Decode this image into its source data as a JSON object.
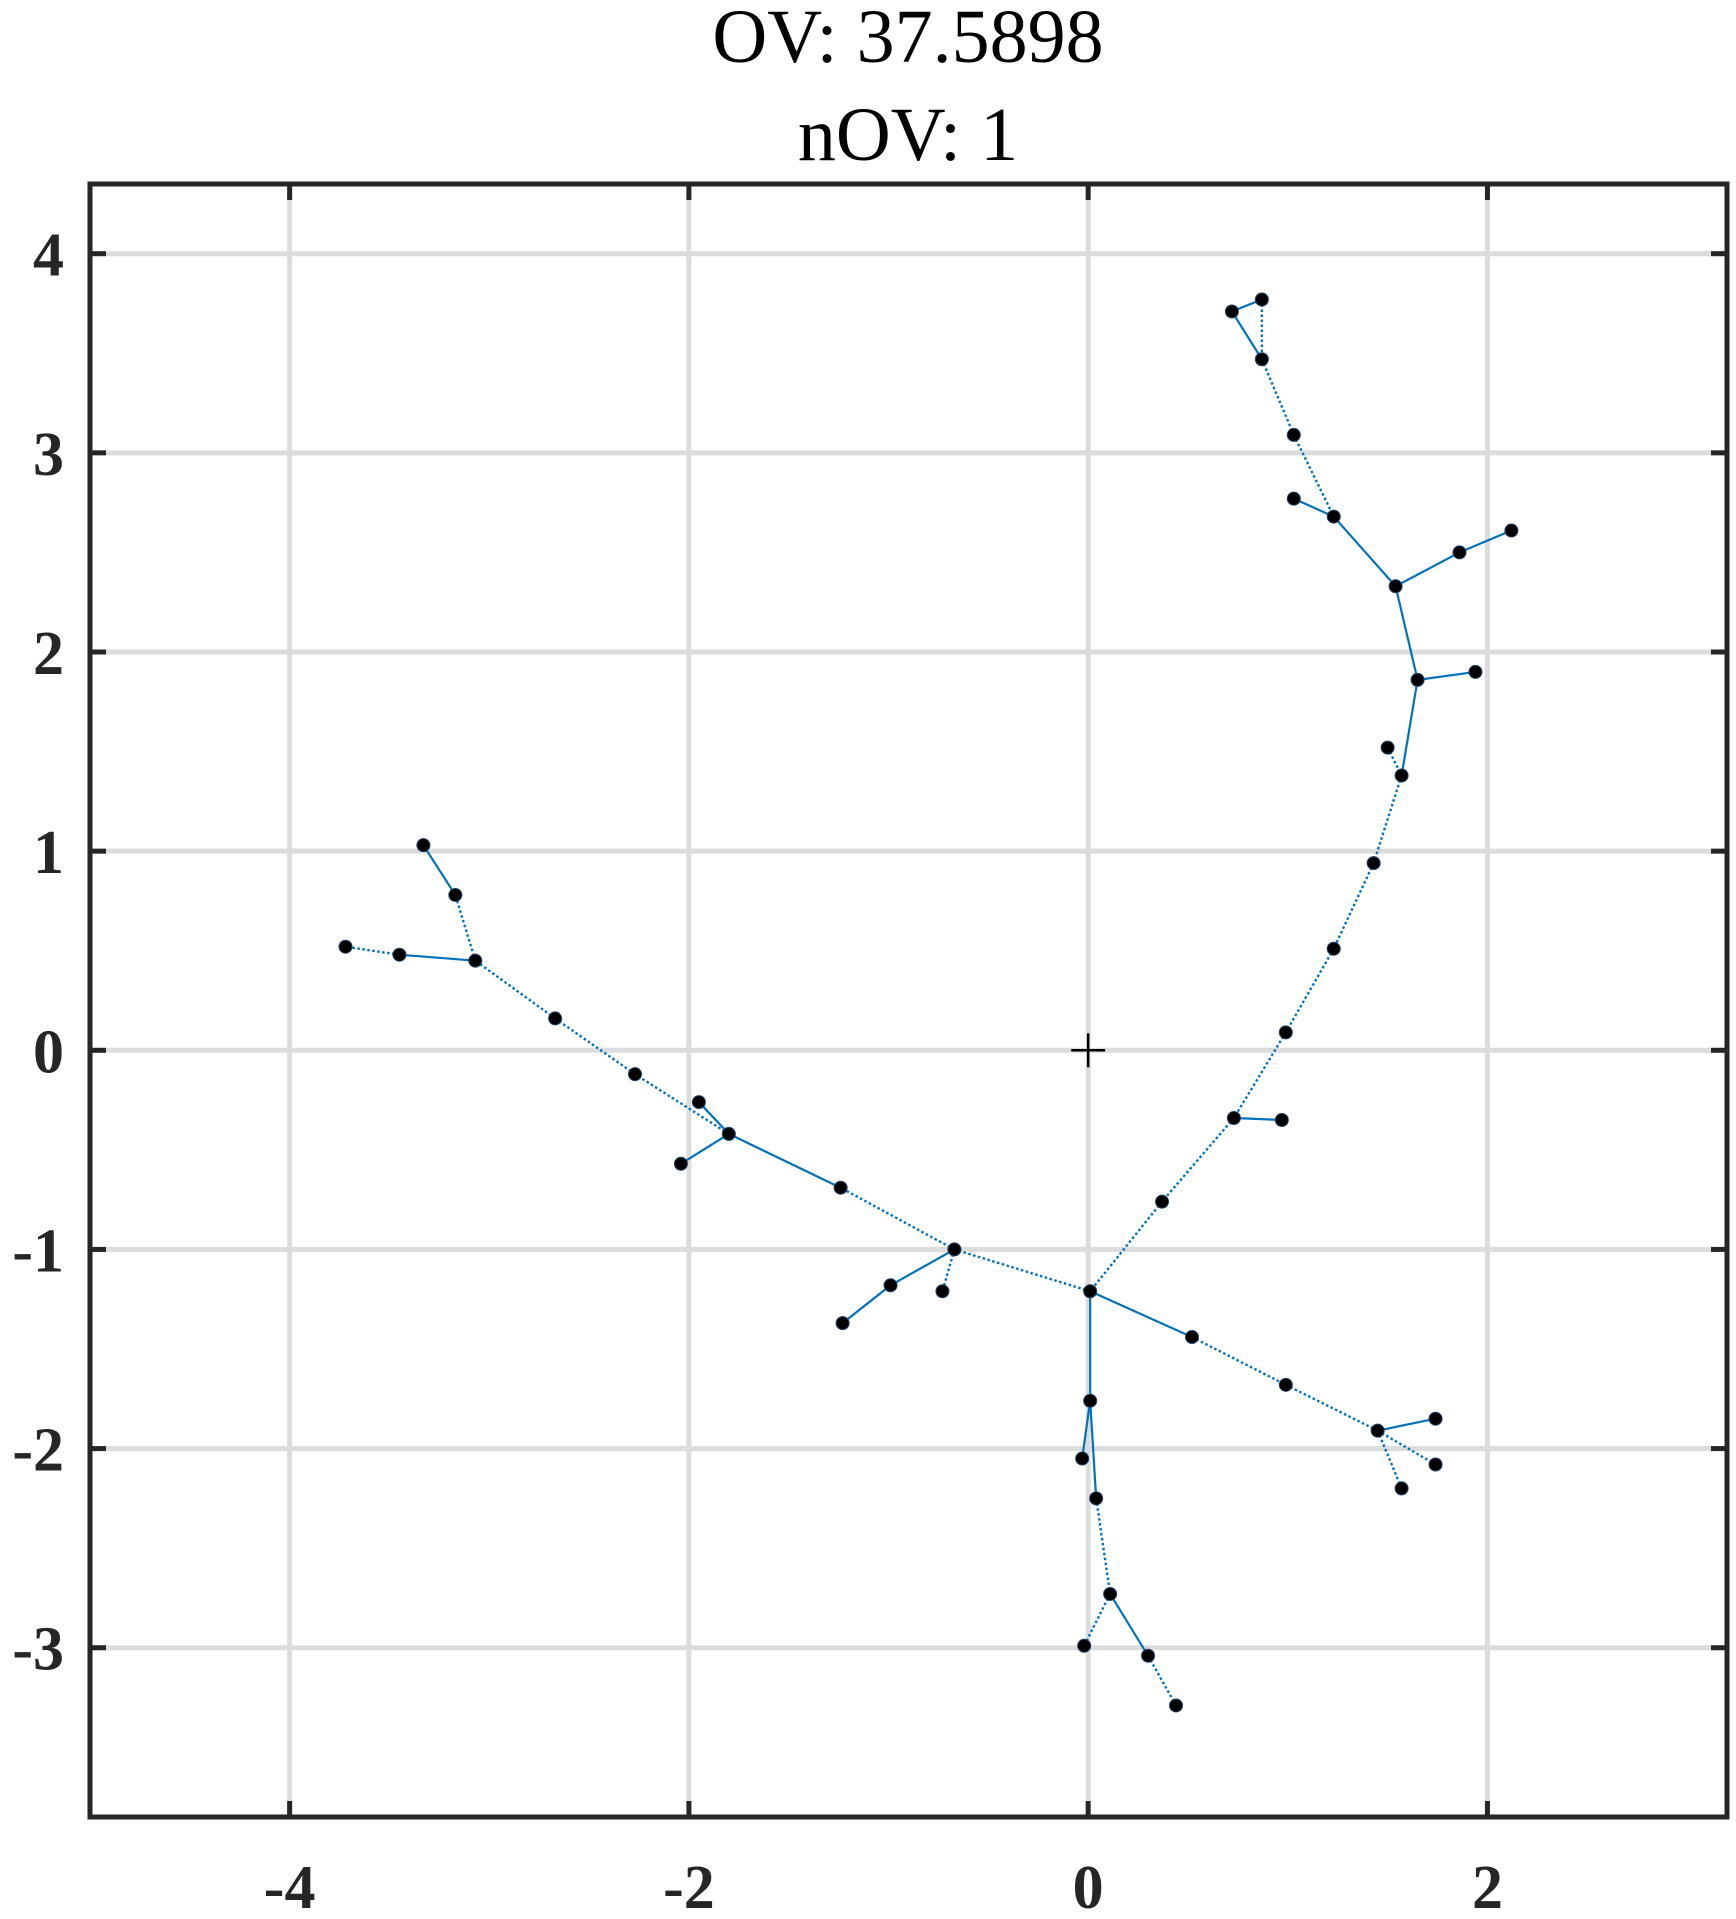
{
  "chart_data": {
    "type": "scatter",
    "title_lines": [
      "OV: 37.5898",
      "nOV: 1"
    ],
    "xlabel": "",
    "ylabel": "",
    "xlim": [
      -5,
      3.2
    ],
    "ylim": [
      -3.85,
      4.35
    ],
    "x_ticks": [
      -4,
      -2,
      0,
      2
    ],
    "y_ticks": [
      4,
      3,
      2,
      1,
      0,
      -1,
      -2,
      -3
    ],
    "x_tick_labels": [
      "-4",
      "-2",
      "0",
      "2"
    ],
    "y_tick_labels": [
      "4",
      "3",
      "2",
      "1",
      "0",
      "-1",
      "-2",
      "-3"
    ],
    "grid": true,
    "center_marker": [
      0,
      0
    ],
    "colors": {
      "edge": "#0072BD",
      "node": "#000000",
      "grid": "#dcdcdc",
      "axes": "#262626"
    },
    "nodes": [
      {
        "id": "a",
        "x": 0.72,
        "y": 3.71
      },
      {
        "id": "b",
        "x": 0.87,
        "y": 3.77
      },
      {
        "id": "c",
        "x": 0.87,
        "y": 3.47
      },
      {
        "id": "d",
        "x": 1.03,
        "y": 3.09
      },
      {
        "id": "e",
        "x": 1.03,
        "y": 2.77
      },
      {
        "id": "f",
        "x": 1.23,
        "y": 2.68
      },
      {
        "id": "g",
        "x": 2.12,
        "y": 2.61
      },
      {
        "id": "h",
        "x": 1.86,
        "y": 2.5
      },
      {
        "id": "i",
        "x": 1.54,
        "y": 2.33
      },
      {
        "id": "j",
        "x": 1.94,
        "y": 1.9
      },
      {
        "id": "k",
        "x": 1.65,
        "y": 1.86
      },
      {
        "id": "l",
        "x": 1.5,
        "y": 1.52
      },
      {
        "id": "m",
        "x": 1.57,
        "y": 1.38
      },
      {
        "id": "n",
        "x": 1.43,
        "y": 0.94
      },
      {
        "id": "o",
        "x": 1.23,
        "y": 0.51
      },
      {
        "id": "p",
        "x": 0.99,
        "y": 0.09
      },
      {
        "id": "q",
        "x": 0.73,
        "y": -0.34
      },
      {
        "id": "r",
        "x": 0.97,
        "y": -0.35
      },
      {
        "id": "s",
        "x": 0.37,
        "y": -0.76
      },
      {
        "id": "t",
        "x": 0.01,
        "y": -1.21
      },
      {
        "id": "u",
        "x": 0.52,
        "y": -1.44
      },
      {
        "id": "v",
        "x": 0.99,
        "y": -1.68
      },
      {
        "id": "w",
        "x": 1.45,
        "y": -1.91
      },
      {
        "id": "x",
        "x": 1.74,
        "y": -1.85
      },
      {
        "id": "y",
        "x": 1.74,
        "y": -2.08
      },
      {
        "id": "z",
        "x": 1.57,
        "y": -2.2
      },
      {
        "id": "aa",
        "x": 0.01,
        "y": -1.76
      },
      {
        "id": "ab",
        "x": -0.03,
        "y": -2.05
      },
      {
        "id": "ac",
        "x": 0.04,
        "y": -2.25
      },
      {
        "id": "ad",
        "x": 0.11,
        "y": -2.73
      },
      {
        "id": "ae",
        "x": -0.02,
        "y": -2.99
      },
      {
        "id": "af",
        "x": 0.3,
        "y": -3.04
      },
      {
        "id": "ag",
        "x": 0.44,
        "y": -3.29
      },
      {
        "id": "ah",
        "x": -0.67,
        "y": -1.0
      },
      {
        "id": "ai",
        "x": -0.99,
        "y": -1.18
      },
      {
        "id": "aj",
        "x": -0.73,
        "y": -1.21
      },
      {
        "id": "ak",
        "x": -1.23,
        "y": -1.37
      },
      {
        "id": "al",
        "x": -1.24,
        "y": -0.69
      },
      {
        "id": "am",
        "x": -1.8,
        "y": -0.42
      },
      {
        "id": "an",
        "x": -1.95,
        "y": -0.26
      },
      {
        "id": "ao",
        "x": -2.04,
        "y": -0.57
      },
      {
        "id": "ap",
        "x": -2.27,
        "y": -0.12
      },
      {
        "id": "aq",
        "x": -2.67,
        "y": 0.16
      },
      {
        "id": "ar",
        "x": -3.07,
        "y": 0.45
      },
      {
        "id": "as",
        "x": -3.17,
        "y": 0.78
      },
      {
        "id": "at",
        "x": -3.33,
        "y": 1.03
      },
      {
        "id": "au",
        "x": -3.45,
        "y": 0.48
      },
      {
        "id": "av",
        "x": -3.72,
        "y": 0.52
      }
    ],
    "edges": [
      {
        "from": "a",
        "to": "b",
        "style": "solid"
      },
      {
        "from": "a",
        "to": "c",
        "style": "solid"
      },
      {
        "from": "b",
        "to": "c",
        "style": "dotted"
      },
      {
        "from": "c",
        "to": "d",
        "style": "dotted"
      },
      {
        "from": "d",
        "to": "f",
        "style": "dotted"
      },
      {
        "from": "e",
        "to": "f",
        "style": "solid"
      },
      {
        "from": "f",
        "to": "i",
        "style": "solid"
      },
      {
        "from": "i",
        "to": "h",
        "style": "solid"
      },
      {
        "from": "h",
        "to": "g",
        "style": "solid"
      },
      {
        "from": "i",
        "to": "k",
        "style": "solid"
      },
      {
        "from": "k",
        "to": "j",
        "style": "solid"
      },
      {
        "from": "k",
        "to": "m",
        "style": "solid"
      },
      {
        "from": "l",
        "to": "m",
        "style": "dotted"
      },
      {
        "from": "m",
        "to": "n",
        "style": "dotted"
      },
      {
        "from": "n",
        "to": "o",
        "style": "dotted"
      },
      {
        "from": "o",
        "to": "p",
        "style": "dotted"
      },
      {
        "from": "p",
        "to": "q",
        "style": "dotted"
      },
      {
        "from": "q",
        "to": "r",
        "style": "solid"
      },
      {
        "from": "q",
        "to": "s",
        "style": "dotted"
      },
      {
        "from": "s",
        "to": "t",
        "style": "dotted"
      },
      {
        "from": "t",
        "to": "u",
        "style": "solid"
      },
      {
        "from": "u",
        "to": "v",
        "style": "dotted"
      },
      {
        "from": "v",
        "to": "w",
        "style": "dotted"
      },
      {
        "from": "w",
        "to": "x",
        "style": "solid"
      },
      {
        "from": "w",
        "to": "y",
        "style": "dotted"
      },
      {
        "from": "w",
        "to": "z",
        "style": "dotted"
      },
      {
        "from": "t",
        "to": "aa",
        "style": "solid"
      },
      {
        "from": "aa",
        "to": "ab",
        "style": "solid"
      },
      {
        "from": "aa",
        "to": "ac",
        "style": "solid"
      },
      {
        "from": "ac",
        "to": "ad",
        "style": "dotted"
      },
      {
        "from": "ad",
        "to": "ae",
        "style": "dotted"
      },
      {
        "from": "ad",
        "to": "af",
        "style": "solid"
      },
      {
        "from": "af",
        "to": "ag",
        "style": "dotted"
      },
      {
        "from": "t",
        "to": "ah",
        "style": "dotted"
      },
      {
        "from": "ah",
        "to": "ai",
        "style": "solid"
      },
      {
        "from": "ai",
        "to": "ak",
        "style": "solid"
      },
      {
        "from": "ah",
        "to": "aj",
        "style": "dotted"
      },
      {
        "from": "ah",
        "to": "al",
        "style": "dotted"
      },
      {
        "from": "al",
        "to": "am",
        "style": "solid"
      },
      {
        "from": "am",
        "to": "an",
        "style": "solid"
      },
      {
        "from": "am",
        "to": "ao",
        "style": "solid"
      },
      {
        "from": "am",
        "to": "ap",
        "style": "dotted"
      },
      {
        "from": "ap",
        "to": "aq",
        "style": "dotted"
      },
      {
        "from": "aq",
        "to": "ar",
        "style": "dotted"
      },
      {
        "from": "ar",
        "to": "as",
        "style": "dotted"
      },
      {
        "from": "as",
        "to": "at",
        "style": "solid"
      },
      {
        "from": "ar",
        "to": "au",
        "style": "solid"
      },
      {
        "from": "au",
        "to": "av",
        "style": "dotted"
      }
    ]
  }
}
